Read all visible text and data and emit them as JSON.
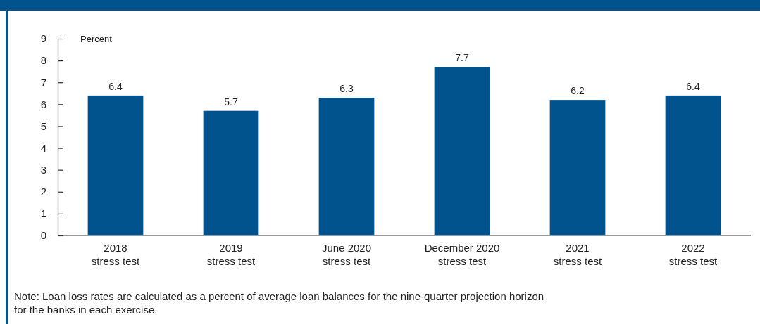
{
  "chart_data": {
    "type": "bar",
    "ylabel": "Percent",
    "categories": [
      "2018\nstress test",
      "2019\nstress test",
      "June 2020\nstress test",
      "December 2020\nstress test",
      "2021\nstress test",
      "2022\nstress test"
    ],
    "values": [
      6.4,
      5.7,
      6.3,
      7.7,
      6.2,
      6.4
    ],
    "color": "#00538c",
    "data_labels": true,
    "ylim": [
      0,
      9
    ],
    "yticks": [
      0,
      1,
      2,
      3,
      4,
      5,
      6,
      7,
      8,
      9
    ],
    "grid": false,
    "annotations": [
      "Note: Loan loss rates are calculated as a percent of average loan balances for the nine-quarter projection horizon\nfor the banks in each exercise."
    ]
  }
}
